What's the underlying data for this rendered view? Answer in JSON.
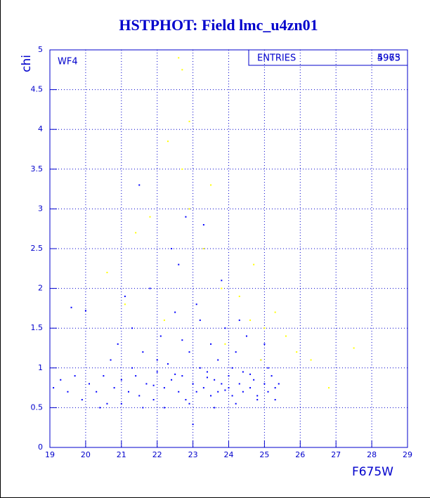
{
  "chart_data": {
    "type": "scatter",
    "title": "HSTPHOT: Field lmc_u4zn01",
    "annotation": "WF4",
    "stats": {
      "label": "ENTRIES",
      "values": [
        5975,
        4963
      ]
    },
    "x_label": "F675W",
    "y_label": "chi",
    "xlim": [
      19,
      29
    ],
    "ylim": [
      0,
      5
    ],
    "xticks": [
      19,
      20,
      21,
      22,
      23,
      24,
      25,
      26,
      27,
      28,
      29
    ],
    "yticks": [
      0,
      0.5,
      1,
      1.5,
      2,
      2.5,
      3,
      3.5,
      4,
      4.5,
      5
    ],
    "grid": true,
    "series": [
      {
        "color": "#0000ff",
        "x": [
          19.1,
          19.3,
          19.5,
          19.6,
          19.7,
          19.9,
          20.0,
          20.1,
          20.3,
          20.5,
          20.6,
          20.7,
          20.8,
          20.9,
          21.0,
          21.1,
          21.2,
          21.3,
          21.4,
          21.5,
          21.5,
          21.6,
          21.7,
          21.8,
          21.9,
          22.0,
          22.1,
          22.2,
          22.3,
          22.4,
          22.5,
          22.6,
          22.6,
          22.7,
          22.8,
          22.8,
          22.9,
          23.0,
          23.0,
          23.1,
          23.2,
          23.3,
          23.3,
          23.4,
          23.5,
          23.5,
          23.6,
          23.7,
          23.7,
          23.8,
          23.9,
          24.0,
          24.0,
          24.1,
          24.2,
          24.3,
          24.4,
          24.4,
          24.5,
          24.6,
          24.7,
          24.8,
          24.9,
          25.0,
          25.1,
          25.2,
          25.3,
          25.4,
          25.0,
          24.2,
          23.6,
          22.9,
          22.2,
          21.6,
          21.0,
          20.4,
          24.8,
          25.3,
          23.4,
          22.5,
          21.9,
          23.9,
          24.6,
          22.7,
          23.1,
          24.3,
          23.8,
          22.4,
          21.3,
          24.1,
          23.2,
          22.0,
          25.1
        ],
        "values": [
          0.75,
          0.85,
          0.7,
          1.76,
          0.9,
          0.6,
          1.72,
          0.8,
          0.7,
          0.9,
          0.55,
          1.1,
          0.75,
          1.3,
          0.85,
          1.9,
          0.7,
          1.5,
          0.9,
          3.3,
          0.65,
          1.2,
          0.8,
          2.0,
          0.6,
          0.95,
          1.4,
          0.75,
          1.05,
          0.85,
          1.7,
          0.7,
          2.3,
          0.9,
          0.6,
          2.9,
          1.2,
          0.8,
          0.29,
          0.7,
          1.6,
          0.75,
          2.8,
          0.95,
          0.65,
          1.3,
          0.85,
          1.1,
          0.7,
          0.8,
          1.5,
          0.75,
          0.9,
          0.65,
          1.2,
          0.8,
          0.7,
          0.95,
          1.4,
          0.75,
          0.85,
          0.65,
          1.1,
          0.8,
          0.7,
          0.9,
          0.75,
          0.8,
          1.3,
          0.55,
          0.5,
          0.55,
          0.5,
          0.5,
          0.55,
          0.5,
          0.6,
          0.6,
          0.88,
          0.92,
          0.78,
          0.72,
          0.92,
          1.35,
          1.8,
          1.6,
          2.1,
          2.5,
          1.0,
          1.0,
          1.0,
          1.1,
          1.0
        ]
      },
      {
        "color": "#ffff00",
        "x": [
          22.6,
          22.7,
          22.3,
          22.9,
          23.5,
          22.9,
          21.8,
          23.8,
          24.3,
          24.7,
          25.3,
          25.6,
          25.9,
          26.3,
          27.5,
          26.8,
          25.0,
          24.6,
          21.4,
          20.6,
          21.1,
          23.3,
          22.7,
          23.9,
          24.9,
          22.2
        ],
        "values": [
          4.9,
          4.75,
          3.85,
          4.1,
          3.3,
          3.0,
          2.9,
          2.0,
          1.9,
          2.3,
          1.7,
          1.4,
          1.2,
          1.1,
          1.25,
          0.75,
          1.5,
          1.6,
          2.7,
          2.2,
          1.8,
          2.5,
          3.5,
          1.3,
          1.1,
          1.6
        ]
      }
    ]
  }
}
